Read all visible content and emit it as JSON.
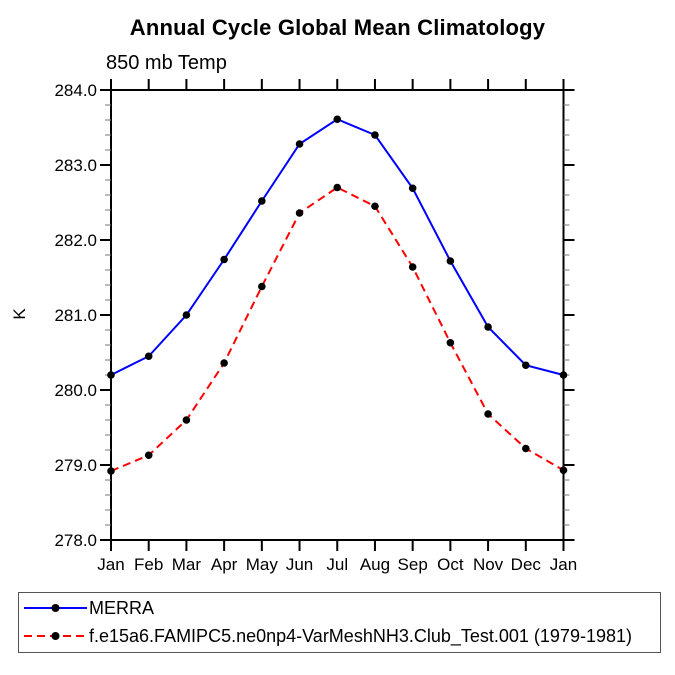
{
  "page": {
    "background": "#ffffff"
  },
  "chart_data": {
    "type": "line",
    "title": "Annual Cycle Global Mean Climatology",
    "subtitle": "850 mb Temp",
    "ylabel": "K",
    "xlabel": "",
    "categories": [
      "Jan",
      "Feb",
      "Mar",
      "Apr",
      "May",
      "Jun",
      "Jul",
      "Aug",
      "Sep",
      "Oct",
      "Nov",
      "Dec",
      "Jan"
    ],
    "ylim": [
      278.0,
      284.0
    ],
    "y_major_tick_labels": [
      "278.0",
      "279.0",
      "280.0",
      "281.0",
      "282.0",
      "283.0",
      "284.0"
    ],
    "y_minor_tick_step": 0.2,
    "grid": false,
    "axis_color": "#000000",
    "marker": {
      "shape": "filled-circle",
      "color": "#000000"
    },
    "legend_position": "below-plot-left",
    "series": [
      {
        "name": "MERRA",
        "color": "#0000ff",
        "line_style": "solid",
        "values": [
          280.2,
          280.45,
          281.0,
          281.74,
          282.52,
          283.28,
          283.61,
          283.4,
          282.69,
          281.72,
          280.84,
          280.33,
          280.2
        ]
      },
      {
        "name": "f.e15a6.FAMIPC5.ne0np4-VarMeshNH3.Club_Test.001 (1979-1981)",
        "color": "#ff0000",
        "line_style": "dashed",
        "values": [
          278.92,
          279.13,
          279.6,
          280.36,
          281.38,
          282.36,
          282.7,
          282.45,
          281.64,
          280.63,
          279.68,
          279.22,
          278.93
        ]
      }
    ]
  }
}
